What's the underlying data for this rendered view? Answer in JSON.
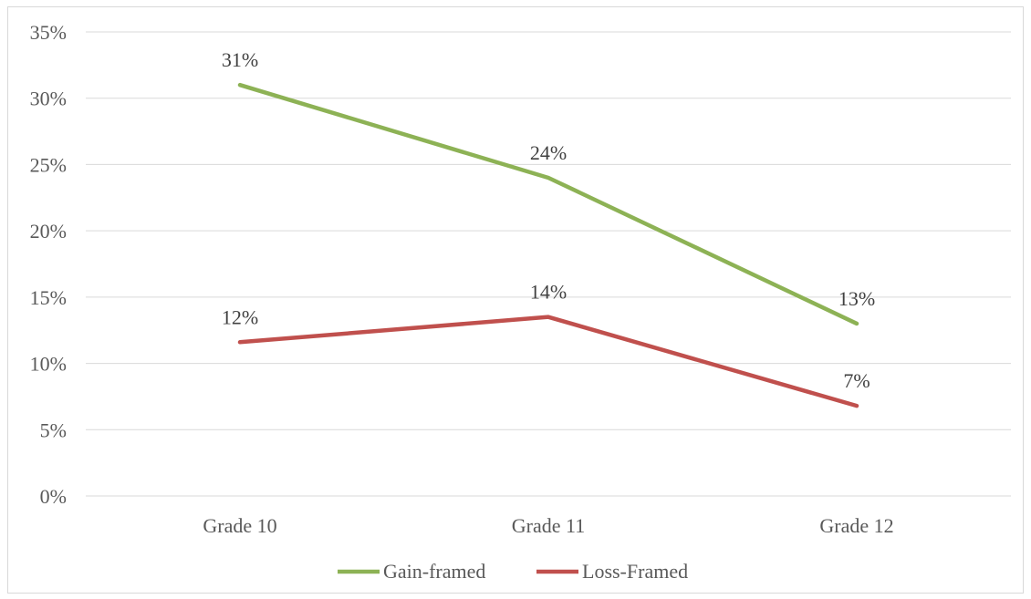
{
  "chart_data": {
    "type": "line",
    "categories": [
      "Grade 10",
      "Grade 11",
      "Grade 12"
    ],
    "series": [
      {
        "name": "Gain-framed",
        "values": [
          31,
          24,
          13
        ],
        "labels": [
          "31%",
          "24%",
          "13%"
        ],
        "color": "#8db255"
      },
      {
        "name": "Loss-Framed",
        "values": [
          11.6,
          13.5,
          6.8
        ],
        "labels": [
          "12%",
          "14%",
          "7%"
        ],
        "color": "#c0504d"
      }
    ],
    "yticks": [
      "0%",
      "5%",
      "10%",
      "15%",
      "20%",
      "25%",
      "30%",
      "35%"
    ],
    "ylim": [
      0,
      35
    ],
    "grid": true,
    "legend_position": "bottom",
    "gridline_color": "#d9d9d9",
    "axis_text_color": "#595959"
  }
}
